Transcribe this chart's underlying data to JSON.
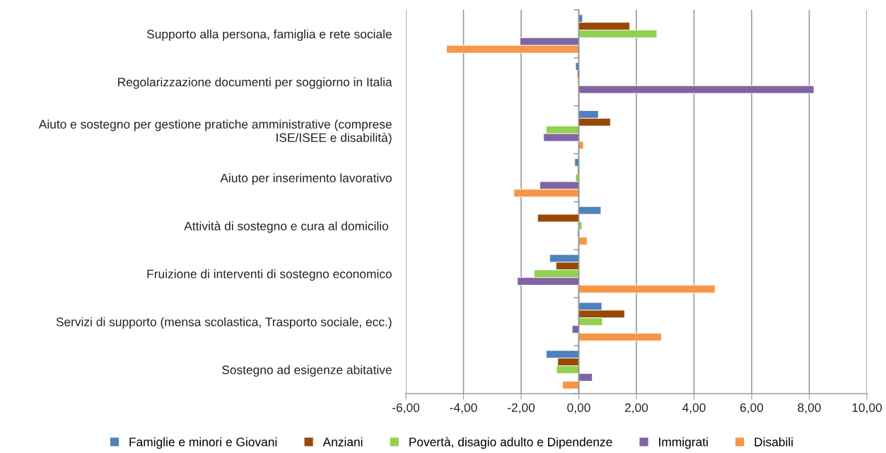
{
  "chart_data": {
    "type": "bar",
    "orientation": "horizontal",
    "categories": [
      "Supporto alla persona, famiglia e rete sociale",
      "Regolarizzazione documenti per soggiorno in Italia",
      "Aiuto e sostegno per gestione pratiche amministrative (comprese\nISE/ISEE e disabilità)",
      "Aiuto per inserimento lavorativo",
      "Attività di sostegno e cura al domicilio ",
      "Fruizione di interventi di sostegno economico",
      "Servizi di supporto (mensa scolastica, Trasporto sociale, ecc.)",
      "Sostegno ad esigenze abitative"
    ],
    "series": [
      {
        "name": "Famiglie e minori e Giovani",
        "color": "#4f81bd",
        "values": [
          0.13,
          -0.11,
          0.68,
          -0.14,
          0.77,
          -1.01,
          0.8,
          -1.13
        ]
      },
      {
        "name": "Anziani",
        "color": "#984807",
        "values": [
          1.77,
          -0.05,
          1.1,
          -0.04,
          -1.43,
          -0.79,
          1.59,
          -0.73
        ]
      },
      {
        "name": "Povertà, disagio adulto e Dipendenze",
        "color": "#92d050",
        "values": [
          2.71,
          null,
          -1.13,
          -0.11,
          0.11,
          -1.55,
          0.82,
          -0.77
        ]
      },
      {
        "name": "Immigrati",
        "color": "#8064a2",
        "values": [
          -2.04,
          8.16,
          -1.22,
          -1.35,
          -0.04,
          -2.13,
          -0.23,
          0.47
        ]
      },
      {
        "name": "Disabili",
        "color": "#f79646",
        "values": [
          -4.59,
          0.04,
          0.16,
          -2.25,
          0.29,
          4.73,
          2.87,
          -0.56
        ]
      }
    ],
    "xlim": [
      -6,
      10
    ],
    "xticks": [
      {
        "value": -6,
        "label": "-6,00"
      },
      {
        "value": -4,
        "label": "-4,00"
      },
      {
        "value": -2,
        "label": "-2,00"
      },
      {
        "value": 0,
        "label": "0,00"
      },
      {
        "value": 2,
        "label": "2,00"
      },
      {
        "value": 4,
        "label": "4,00"
      },
      {
        "value": 6,
        "label": "6,00"
      },
      {
        "value": 8,
        "label": "8,00"
      },
      {
        "value": 10,
        "label": "10,00"
      }
    ],
    "grid": "x",
    "legend": "bottom"
  }
}
